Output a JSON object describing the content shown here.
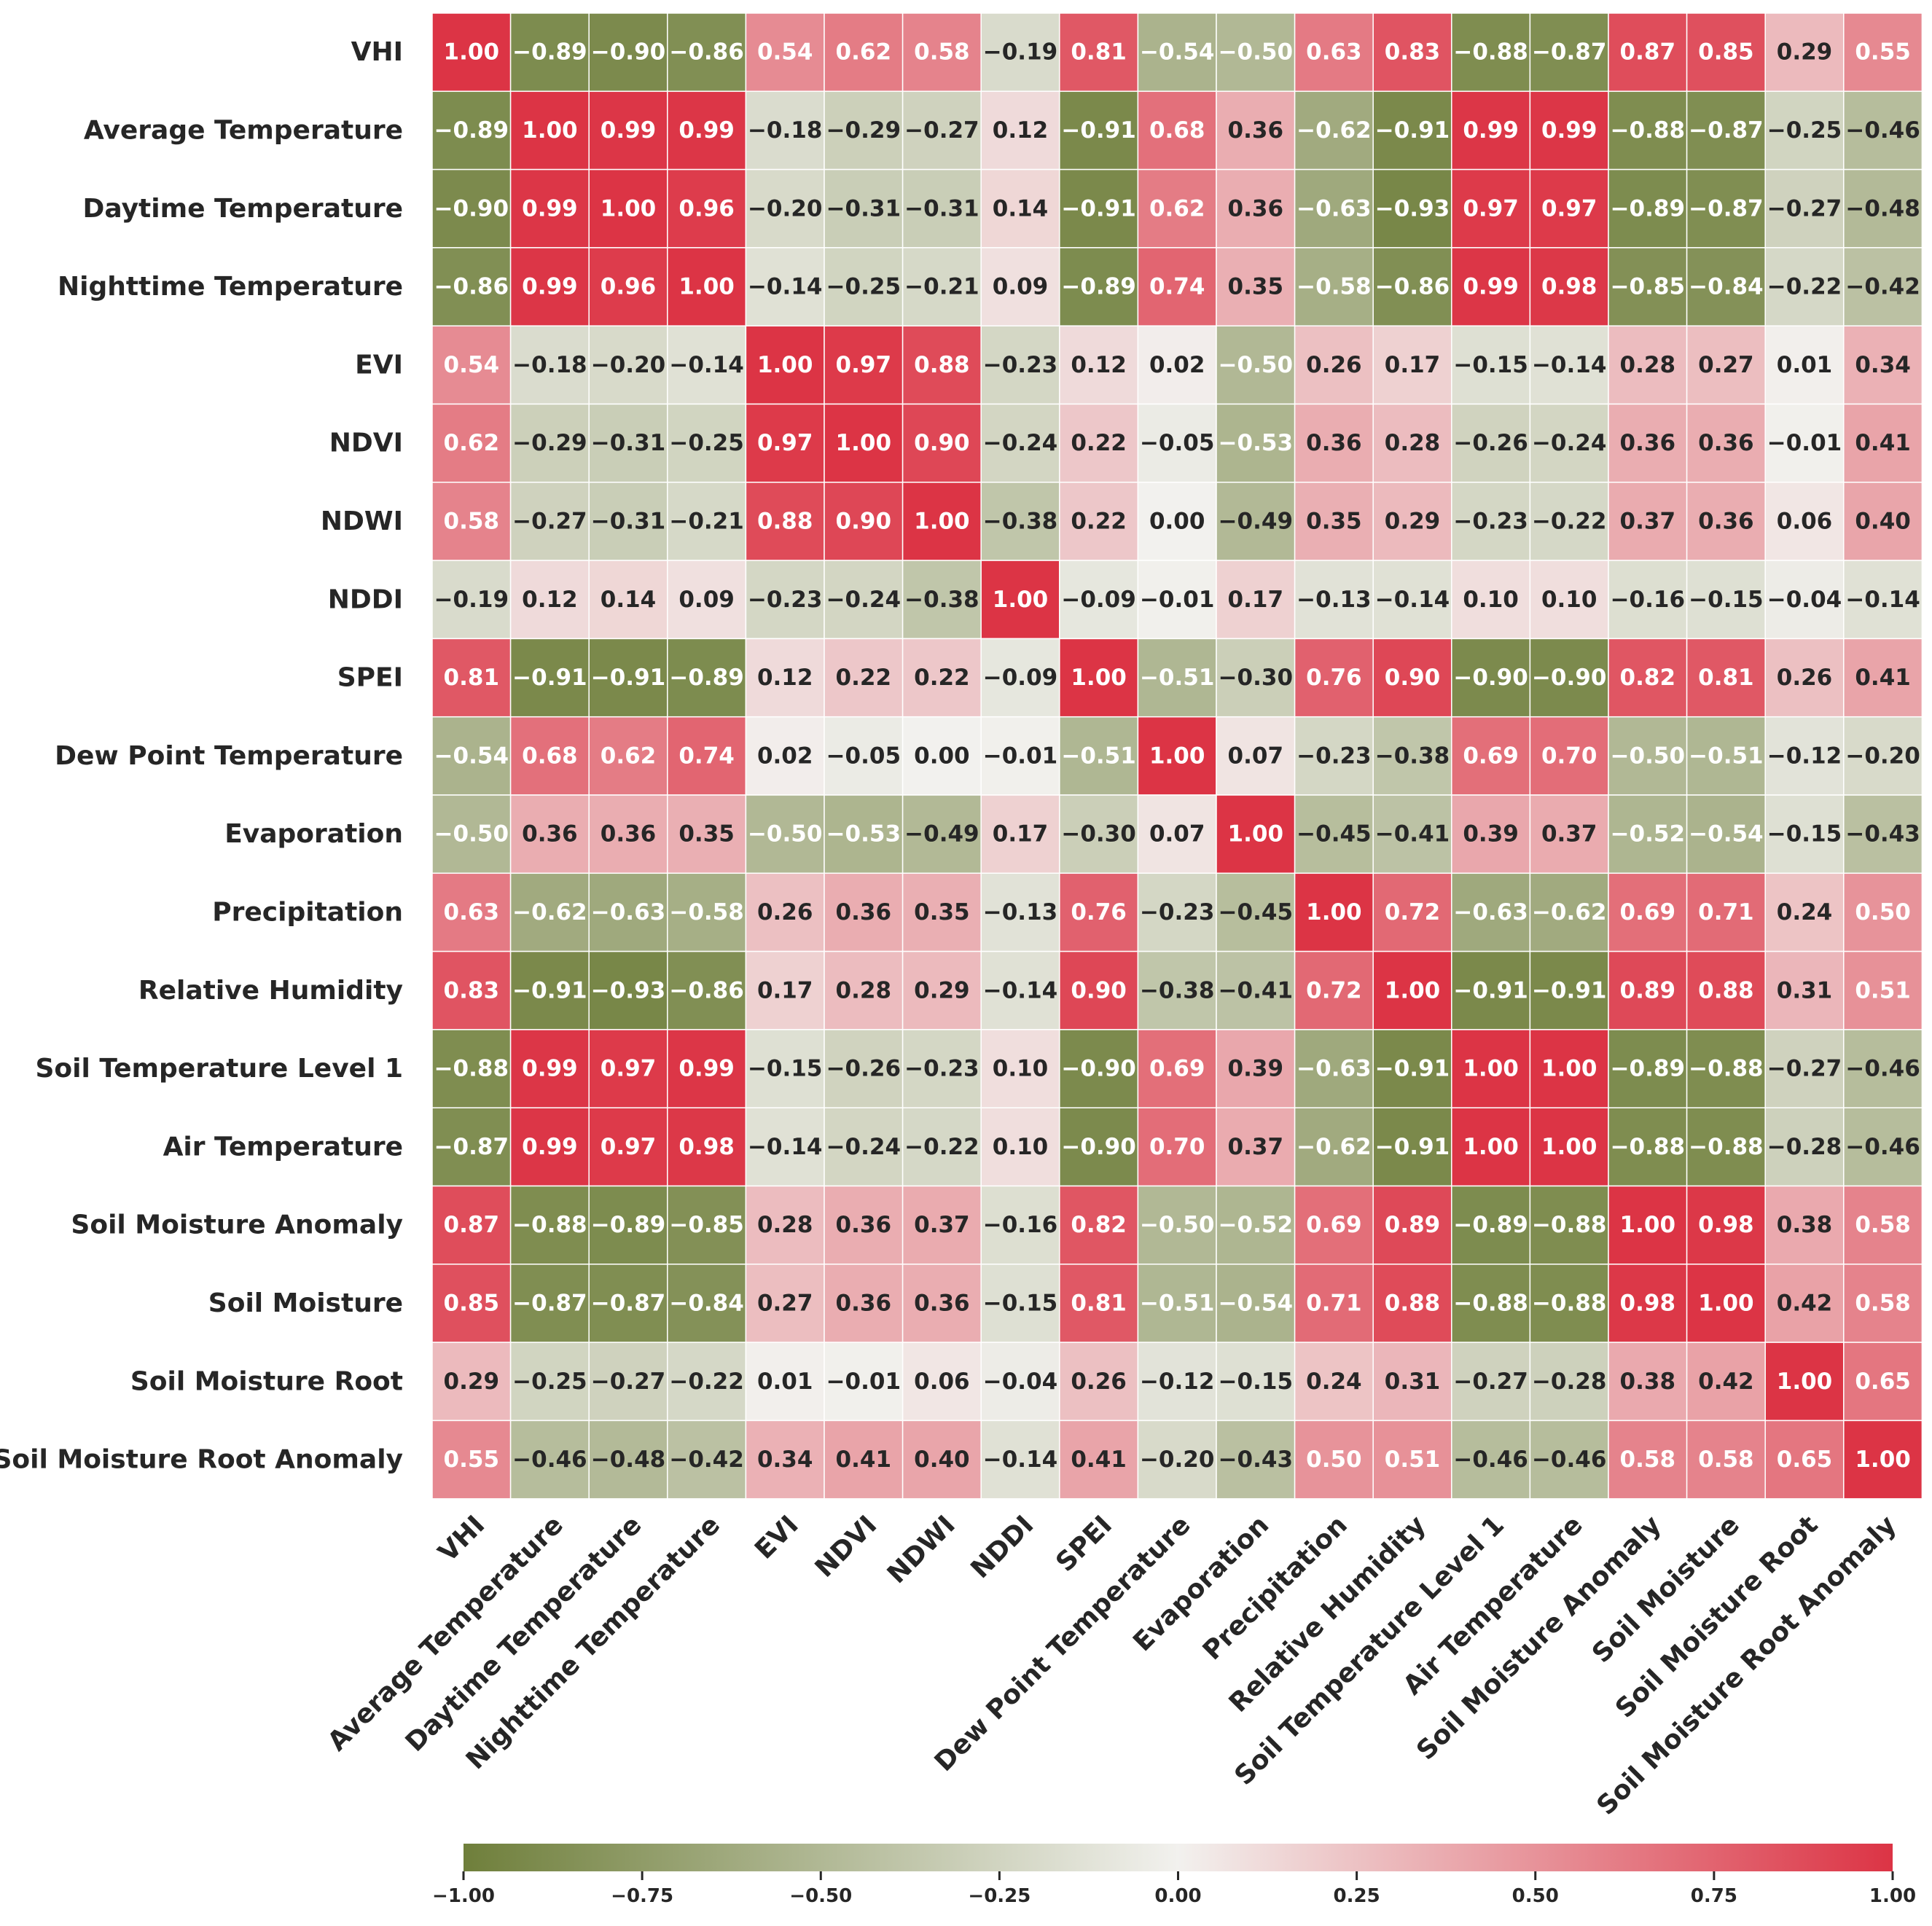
{
  "chart_data": {
    "type": "heatmap",
    "title": "",
    "variables": [
      "VHI",
      "Average Temperature",
      "Daytime Temperature",
      "Nighttime Temperature",
      "EVI",
      "NDVI",
      "NDWI",
      "NDDI",
      "SPEI",
      "Dew Point Temperature",
      "Evaporation",
      "Precipitation",
      "Relative Humidity",
      "Soil Temperature Level 1",
      "Air Temperature",
      "Soil Moisture Anomaly",
      "Soil Moisture",
      "Soil Moisture Root",
      "Soil Moisture Root Anomaly"
    ],
    "matrix": [
      [
        1.0,
        -0.89,
        -0.9,
        -0.86,
        0.54,
        0.62,
        0.58,
        -0.19,
        0.81,
        -0.54,
        -0.5,
        0.63,
        0.83,
        -0.88,
        -0.87,
        0.87,
        0.85,
        0.29,
        0.55
      ],
      [
        -0.89,
        1.0,
        0.99,
        0.99,
        -0.18,
        -0.29,
        -0.27,
        0.12,
        -0.91,
        0.68,
        0.36,
        -0.62,
        -0.91,
        0.99,
        0.99,
        -0.88,
        -0.87,
        -0.25,
        -0.46
      ],
      [
        -0.9,
        0.99,
        1.0,
        0.96,
        -0.2,
        -0.31,
        -0.31,
        0.14,
        -0.91,
        0.62,
        0.36,
        -0.63,
        -0.93,
        0.97,
        0.97,
        -0.89,
        -0.87,
        -0.27,
        -0.48
      ],
      [
        -0.86,
        0.99,
        0.96,
        1.0,
        -0.14,
        -0.25,
        -0.21,
        0.09,
        -0.89,
        0.74,
        0.35,
        -0.58,
        -0.86,
        0.99,
        0.98,
        -0.85,
        -0.84,
        -0.22,
        -0.42
      ],
      [
        0.54,
        -0.18,
        -0.2,
        -0.14,
        1.0,
        0.97,
        0.88,
        -0.23,
        0.12,
        0.02,
        -0.5,
        0.26,
        0.17,
        -0.15,
        -0.14,
        0.28,
        0.27,
        0.01,
        0.34
      ],
      [
        0.62,
        -0.29,
        -0.31,
        -0.25,
        0.97,
        1.0,
        0.9,
        -0.24,
        0.22,
        -0.05,
        -0.53,
        0.36,
        0.28,
        -0.26,
        -0.24,
        0.36,
        0.36,
        -0.01,
        0.41
      ],
      [
        0.58,
        -0.27,
        -0.31,
        -0.21,
        0.88,
        0.9,
        1.0,
        -0.38,
        0.22,
        0.0,
        -0.49,
        0.35,
        0.29,
        -0.23,
        -0.22,
        0.37,
        0.36,
        0.06,
        0.4
      ],
      [
        -0.19,
        0.12,
        0.14,
        0.09,
        -0.23,
        -0.24,
        -0.38,
        1.0,
        -0.09,
        -0.01,
        0.17,
        -0.13,
        -0.14,
        0.1,
        0.1,
        -0.16,
        -0.15,
        -0.04,
        -0.14
      ],
      [
        0.81,
        -0.91,
        -0.91,
        -0.89,
        0.12,
        0.22,
        0.22,
        -0.09,
        1.0,
        -0.51,
        -0.3,
        0.76,
        0.9,
        -0.9,
        -0.9,
        0.82,
        0.81,
        0.26,
        0.41
      ],
      [
        -0.54,
        0.68,
        0.62,
        0.74,
        0.02,
        -0.05,
        0.0,
        -0.01,
        -0.51,
        1.0,
        0.07,
        -0.23,
        -0.38,
        0.69,
        0.7,
        -0.5,
        -0.51,
        -0.12,
        -0.2
      ],
      [
        -0.5,
        0.36,
        0.36,
        0.35,
        -0.5,
        -0.53,
        -0.49,
        0.17,
        -0.3,
        0.07,
        1.0,
        -0.45,
        -0.41,
        0.39,
        0.37,
        -0.52,
        -0.54,
        -0.15,
        -0.43
      ],
      [
        0.63,
        -0.62,
        -0.63,
        -0.58,
        0.26,
        0.36,
        0.35,
        -0.13,
        0.76,
        -0.23,
        -0.45,
        1.0,
        0.72,
        -0.63,
        -0.62,
        0.69,
        0.71,
        0.24,
        0.5
      ],
      [
        0.83,
        -0.91,
        -0.93,
        -0.86,
        0.17,
        0.28,
        0.29,
        -0.14,
        0.9,
        -0.38,
        -0.41,
        0.72,
        1.0,
        -0.91,
        -0.91,
        0.89,
        0.88,
        0.31,
        0.51
      ],
      [
        -0.88,
        0.99,
        0.97,
        0.99,
        -0.15,
        -0.26,
        -0.23,
        0.1,
        -0.9,
        0.69,
        0.39,
        -0.63,
        -0.91,
        1.0,
        1.0,
        -0.89,
        -0.88,
        -0.27,
        -0.46
      ],
      [
        -0.87,
        0.99,
        0.97,
        0.98,
        -0.14,
        -0.24,
        -0.22,
        0.1,
        -0.9,
        0.7,
        0.37,
        -0.62,
        -0.91,
        1.0,
        1.0,
        -0.88,
        -0.88,
        -0.28,
        -0.46
      ],
      [
        0.87,
        -0.88,
        -0.89,
        -0.85,
        0.28,
        0.36,
        0.37,
        -0.16,
        0.82,
        -0.5,
        -0.52,
        0.69,
        0.89,
        -0.89,
        -0.88,
        1.0,
        0.98,
        0.38,
        0.58
      ],
      [
        0.85,
        -0.87,
        -0.87,
        -0.84,
        0.27,
        0.36,
        0.36,
        -0.15,
        0.81,
        -0.51,
        -0.54,
        0.71,
        0.88,
        -0.88,
        -0.88,
        0.98,
        1.0,
        0.42,
        0.58
      ],
      [
        0.29,
        -0.25,
        -0.27,
        -0.22,
        0.01,
        -0.01,
        0.06,
        -0.04,
        0.26,
        -0.12,
        -0.15,
        0.24,
        0.31,
        -0.27,
        -0.28,
        0.38,
        0.42,
        1.0,
        0.65
      ],
      [
        0.55,
        -0.46,
        -0.48,
        -0.42,
        0.34,
        0.41,
        0.4,
        -0.14,
        0.41,
        -0.2,
        -0.43,
        0.5,
        0.51,
        -0.46,
        -0.46,
        0.58,
        0.58,
        0.65,
        1.0
      ]
    ],
    "colorbar": {
      "range": [
        -1.0,
        1.0
      ],
      "ticks": [
        -1.0,
        -0.75,
        -0.5,
        -0.25,
        0.0,
        0.25,
        0.5,
        0.75,
        1.0
      ],
      "tick_labels": [
        "−1.00",
        "−0.75",
        "−0.50",
        "−0.25",
        "0.00",
        "0.25",
        "0.50",
        "0.75",
        "1.00"
      ],
      "orientation": "horizontal",
      "placement": "bottom"
    },
    "colormap": {
      "negative": "#6f7f3b",
      "neutral": "#f2f1ee",
      "positive": "#dc3445"
    },
    "annotation_colors": {
      "light": "#ffffff",
      "dark": "#262626"
    },
    "grid_color": "#ffffff",
    "annotate": true,
    "number_format": "0.00"
  }
}
